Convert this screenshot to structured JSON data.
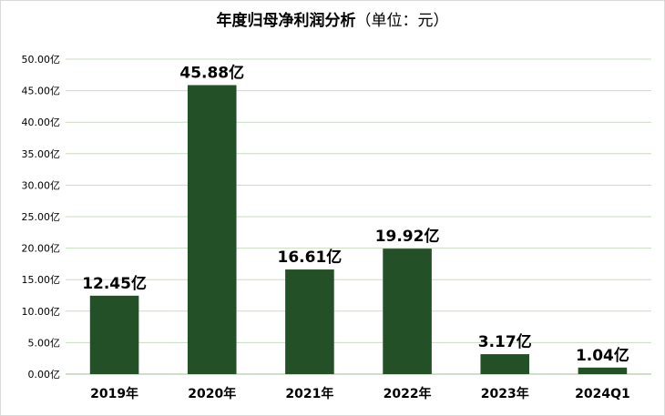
{
  "chart_data": {
    "type": "bar",
    "title": "年度归母净利润分析",
    "unit_label": "（单位：元）",
    "categories": [
      "2019年",
      "2020年",
      "2021年",
      "2022年",
      "2023年",
      "2024Q1"
    ],
    "series": [
      {
        "values": [
          12.45,
          45.88,
          16.61,
          19.92,
          3.17,
          1.04
        ],
        "labels": [
          "12.45亿",
          "45.88亿",
          "16.61亿",
          "19.92亿",
          "3.17亿",
          "1.04亿"
        ]
      }
    ],
    "y_ticks": [
      "0.00亿",
      "5.00亿",
      "10.00亿",
      "15.00亿",
      "20.00亿",
      "25.00亿",
      "30.00亿",
      "35.00亿",
      "40.00亿",
      "45.00亿",
      "50.00亿"
    ],
    "ylim": [
      0,
      50
    ],
    "grid": true,
    "legend": "none",
    "colors": {
      "bar": "#245028",
      "grid": "#c8dcc0"
    }
  }
}
